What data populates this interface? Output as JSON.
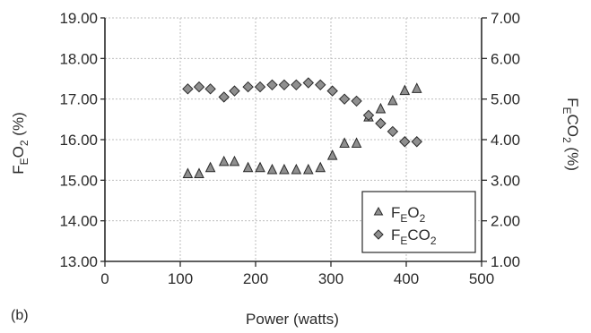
{
  "panel_label": "(b)",
  "chart_data": {
    "type": "scatter",
    "xlabel": "Power (watts)",
    "ylabel_left": {
      "base": "F",
      "sub": "E",
      "rest": "O",
      "sub2": "2",
      "unit": " (%)"
    },
    "ylabel_right": {
      "base": "F",
      "sub": "E",
      "rest": "CO",
      "sub2": "2",
      "unit": " (%)"
    },
    "xlim": [
      0,
      500
    ],
    "x_ticks": [
      "0",
      "100",
      "200",
      "300",
      "400",
      "500"
    ],
    "ylim_left": [
      13,
      19
    ],
    "y_left_ticks": [
      "13.00",
      "14.00",
      "15.00",
      "16.00",
      "17.00",
      "18.00",
      "19.00"
    ],
    "ylim_right": [
      1,
      7
    ],
    "y_right_ticks": [
      "1.00",
      "2.00",
      "3.00",
      "4.00",
      "5.00",
      "6.00",
      "7.00"
    ],
    "grid": true,
    "legend_position": "bottom-right",
    "series": [
      {
        "name": "FEO2",
        "label": {
          "base": "F",
          "sub": "E",
          "rest": "O",
          "sub2": "2"
        },
        "marker": "triangle",
        "axis": "left",
        "x": [
          110,
          125,
          140,
          158,
          172,
          190,
          206,
          222,
          238,
          254,
          270,
          286,
          302,
          318,
          334,
          350,
          366,
          382,
          398,
          414
        ],
        "y": [
          15.15,
          15.15,
          15.3,
          15.45,
          15.45,
          15.3,
          15.3,
          15.25,
          15.25,
          15.25,
          15.25,
          15.3,
          15.6,
          15.9,
          15.9,
          16.55,
          16.75,
          16.95,
          17.2,
          17.25
        ]
      },
      {
        "name": "FECO2",
        "label": {
          "base": "F",
          "sub": "E",
          "rest": "CO",
          "sub2": "2"
        },
        "marker": "diamond",
        "axis": "right",
        "x": [
          110,
          125,
          140,
          158,
          172,
          190,
          206,
          222,
          238,
          254,
          270,
          286,
          302,
          318,
          334,
          350,
          366,
          382,
          398,
          414
        ],
        "y": [
          5.25,
          5.3,
          5.25,
          5.05,
          5.2,
          5.3,
          5.3,
          5.35,
          5.35,
          5.35,
          5.4,
          5.35,
          5.2,
          5.0,
          4.95,
          4.6,
          4.4,
          4.2,
          3.95,
          3.95
        ]
      }
    ]
  }
}
